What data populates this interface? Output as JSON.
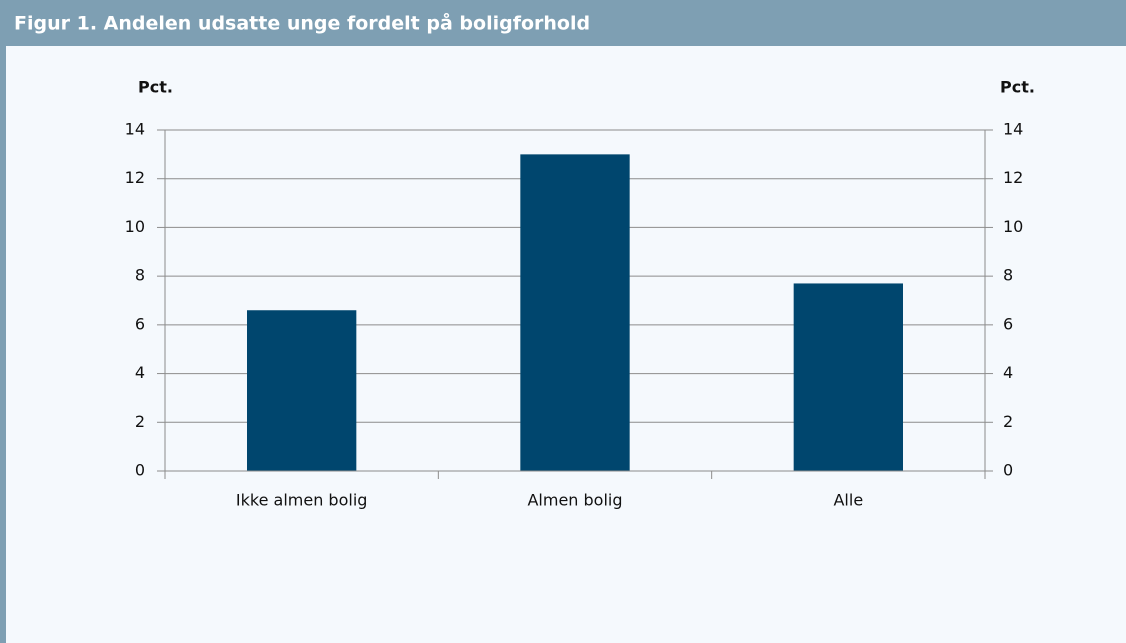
{
  "chart_data": {
    "type": "bar",
    "title": "Figur 1. Andelen udsatte unge fordelt på boligforhold",
    "ylabel": "Pct.",
    "y2label": "Pct.",
    "categories": [
      "Ikke almen bolig",
      "Almen bolig",
      "Alle"
    ],
    "values": [
      6.6,
      13.0,
      7.7
    ],
    "color": "#00466e",
    "ylim": [
      0,
      14
    ],
    "yticks": [
      0,
      2,
      4,
      6,
      8,
      10,
      12,
      14
    ],
    "y2lim": [
      0,
      14
    ],
    "y2ticks": [
      0,
      2,
      4,
      6,
      8,
      10,
      12,
      14
    ],
    "grid": true
  }
}
